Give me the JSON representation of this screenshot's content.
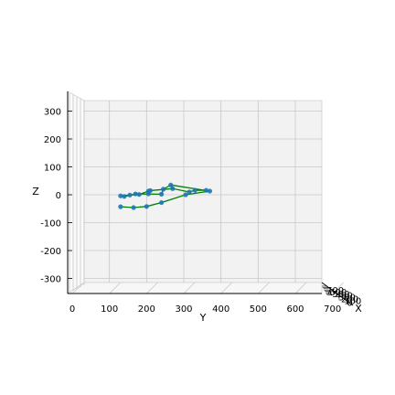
{
  "chart_data": {
    "type": "scatter",
    "subtype": "3d-line-scatter",
    "xlabel": "X",
    "ylabel": "Y",
    "zlabel": "Z",
    "y_ticks": [
      0,
      100,
      200,
      300,
      400,
      500,
      600,
      700
    ],
    "z_ticks": [
      -300,
      -200,
      -100,
      0,
      100,
      200,
      300
    ],
    "x_tick_labels": [
      "700",
      "600",
      "500",
      "400",
      "300",
      "200",
      "100",
      "0"
    ],
    "y_range": [
      0,
      700
    ],
    "z_range": [
      -350,
      350
    ],
    "grid": true,
    "colors": {
      "points": "#1f77b4",
      "lines": "#008000",
      "pane": "#f2f2f2",
      "grid": "#c8c8c8"
    },
    "points": [
      {
        "y": 370,
        "z": 13
      },
      {
        "y": 360,
        "z": 16
      },
      {
        "y": 330,
        "z": 16
      },
      {
        "y": 315,
        "z": 10
      },
      {
        "y": 305,
        "z": 0
      },
      {
        "y": 265,
        "z": 35
      },
      {
        "y": 270,
        "z": 22
      },
      {
        "y": 245,
        "z": 20
      },
      {
        "y": 240,
        "z": 2
      },
      {
        "y": 240,
        "z": -28
      },
      {
        "y": 210,
        "z": 15
      },
      {
        "y": 205,
        "z": 3
      },
      {
        "y": 170,
        "z": 3
      },
      {
        "y": 140,
        "z": -6
      },
      {
        "y": 205,
        "z": 13
      },
      {
        "y": 180,
        "z": 1
      },
      {
        "y": 155,
        "z": -1
      },
      {
        "y": 130,
        "z": -4
      },
      {
        "y": 200,
        "z": -42
      },
      {
        "y": 165,
        "z": -46
      },
      {
        "y": 130,
        "z": -43
      }
    ],
    "segments": [
      [
        0,
        5
      ],
      [
        0,
        4
      ],
      [
        4,
        9
      ],
      [
        9,
        18
      ],
      [
        18,
        19
      ],
      [
        19,
        20
      ],
      [
        5,
        6
      ],
      [
        6,
        3
      ],
      [
        3,
        2
      ],
      [
        2,
        1
      ],
      [
        5,
        7
      ],
      [
        7,
        8
      ],
      [
        8,
        12
      ],
      [
        12,
        13
      ],
      [
        6,
        10
      ],
      [
        10,
        11
      ],
      [
        11,
        14
      ],
      [
        14,
        15
      ],
      [
        15,
        16
      ],
      [
        16,
        17
      ]
    ]
  }
}
